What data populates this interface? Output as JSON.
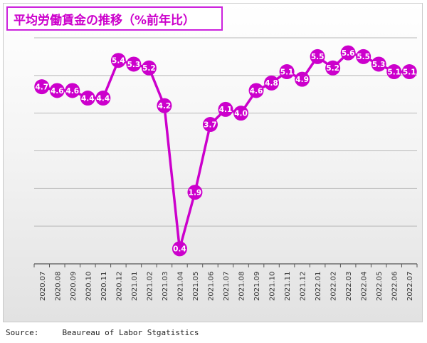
{
  "chart_data": {
    "type": "line",
    "title": "平均労働賃金の推移（%前年比）",
    "x": [
      "2020.07",
      "2020.08",
      "2020.09",
      "2020.10",
      "2020.11",
      "2020.12",
      "2021.01",
      "2021.02",
      "2021.03",
      "2021.04",
      "2021.05",
      "2021.06",
      "2021.07",
      "2021.08",
      "2021.09",
      "2021.10",
      "2021.11",
      "2021.12",
      "2022.01",
      "2022.02",
      "2022.03",
      "2022.04",
      "2022.05",
      "2022.06",
      "2022.07"
    ],
    "series": [
      {
        "values": [
          4.7,
          4.6,
          4.6,
          4.4,
          4.4,
          5.4,
          5.3,
          5.2,
          4.2,
          0.4,
          1.9,
          3.7,
          4.1,
          4.0,
          4.6,
          4.8,
          5.1,
          4.9,
          5.5,
          5.2,
          5.6,
          5.5,
          5.3,
          5.1,
          5.1
        ]
      }
    ],
    "labels": [
      "4.7",
      "4.6",
      "4.6",
      "4.4",
      "4.4",
      "5.4",
      "5.3",
      "5.2",
      "4.2",
      "0.4",
      "1.9",
      "3.7",
      "4.1",
      "4.0",
      "4.6",
      "4.8",
      "5.1",
      "4.9",
      "5.5",
      "5.2",
      "5.6",
      "5.5",
      "5.3",
      "5.1",
      "5.1"
    ],
    "ylim": [
      0,
      6
    ],
    "grid": true,
    "line_color": "#cc00cc",
    "marker_color": "#cc00cc",
    "label_color": "#ffffff"
  },
  "source": {
    "label": "Source:",
    "text": "Beaureau of Labor Stgatistics"
  }
}
